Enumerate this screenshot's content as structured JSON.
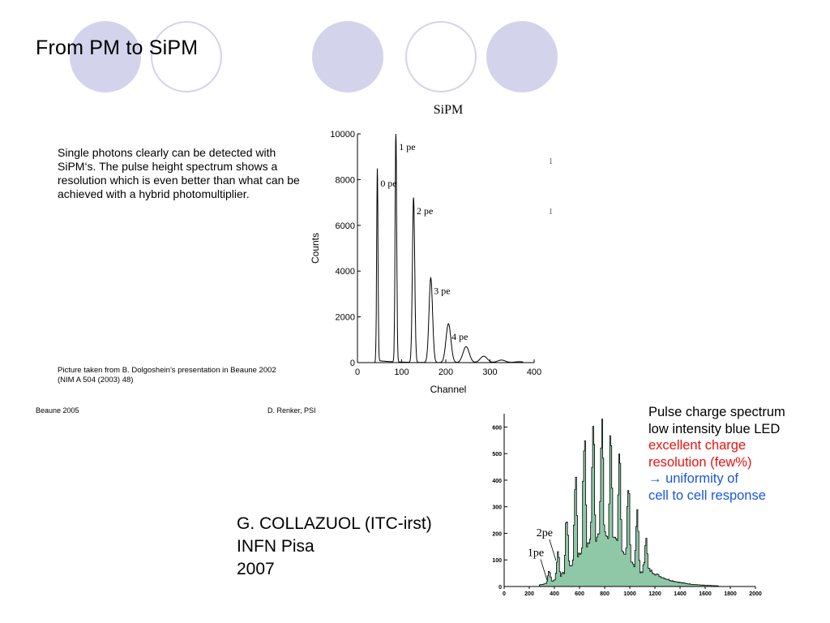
{
  "slide": {
    "title": "From PM to SiPM",
    "body_text": "Single photons clearly can be detected with SiPM‘s. The pulse height spectrum shows a resolution which is even better than what can be achieved with a hybrid photomultiplier.",
    "caption_line1": "Picture taken from B. Dolgoshein’s presentation in Beaune 2002",
    "caption_line2": "(NIM A 504 (2003) 48)",
    "footer_left": "Beaune 2005",
    "footer_center": "D. Renker, PSI",
    "credit": [
      "G. COLLAZUOL (ITC-irst)",
      "INFN Pisa",
      "2007"
    ],
    "margin_marks": [
      "1",
      "1"
    ]
  },
  "colors": {
    "decor_circle": "#d3d3ec",
    "green_fill": "#8ec8a6",
    "red_text": "#ee1111",
    "blue_text": "#1a55e0"
  },
  "chart_data": [
    {
      "type": "line",
      "title": "SiPM",
      "xlabel": "Channel",
      "ylabel": "Counts",
      "xlim": [
        0,
        400
      ],
      "ylim": [
        0,
        10000
      ],
      "xticks": [
        0,
        100,
        200,
        300,
        400
      ],
      "yticks": [
        0,
        2000,
        4000,
        6000,
        8000,
        10000
      ],
      "peaks": [
        {
          "label": "0 pe",
          "x": 45,
          "y": 8400,
          "width": 1.5
        },
        {
          "label": "1 pe",
          "x": 87,
          "y": 10000,
          "width": 1.8
        },
        {
          "label": "2 pe",
          "x": 127,
          "y": 7200,
          "width": 2.6
        },
        {
          "label": "3 pe",
          "x": 166,
          "y": 3700,
          "width": 4
        },
        {
          "label": "4 pe",
          "x": 206,
          "y": 1700,
          "width": 5.5
        },
        {
          "label": "",
          "x": 246,
          "y": 700,
          "width": 7
        },
        {
          "label": "",
          "x": 286,
          "y": 280,
          "width": 8
        },
        {
          "label": "",
          "x": 326,
          "y": 110,
          "width": 9
        },
        {
          "label": "",
          "x": 366,
          "y": 40,
          "width": 10
        }
      ]
    },
    {
      "type": "area",
      "xlim": [
        0,
        2000
      ],
      "ylim": [
        0,
        650
      ],
      "xticks": [
        0,
        200,
        400,
        600,
        800,
        1000,
        1200,
        1400,
        1600,
        1800,
        2000
      ],
      "yticks": [
        0,
        100,
        200,
        300,
        400,
        500,
        600
      ],
      "peak_labels": [
        {
          "label": "1pe",
          "x": 355,
          "y": 35
        },
        {
          "label": "2pe",
          "x": 425,
          "y": 110
        }
      ],
      "peaks": [
        {
          "x": 355,
          "y": 60
        },
        {
          "x": 425,
          "y": 130
        },
        {
          "x": 495,
          "y": 260
        },
        {
          "x": 565,
          "y": 420
        },
        {
          "x": 635,
          "y": 555
        },
        {
          "x": 705,
          "y": 640
        },
        {
          "x": 775,
          "y": 640
        },
        {
          "x": 845,
          "y": 590
        },
        {
          "x": 915,
          "y": 500
        },
        {
          "x": 985,
          "y": 380
        },
        {
          "x": 1055,
          "y": 270
        },
        {
          "x": 1125,
          "y": 180
        }
      ],
      "annotation": {
        "line1": "Pulse charge spectrum",
        "line2": "low intensity blue LED",
        "line3": "excellent charge",
        "line4": "resolution (few%)",
        "line5": "→ uniformity of",
        "line6": "cell to cell response"
      }
    }
  ]
}
